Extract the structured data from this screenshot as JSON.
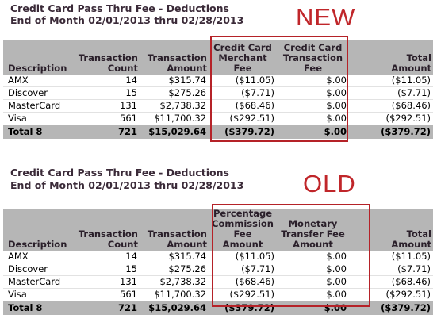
{
  "new_section": {
    "title_line1": "Credit Card Pass Thru Fee - Deductions",
    "title_line2": "End of Month 02/01/2013 thru 02/28/2013",
    "tag": "NEW",
    "headers": {
      "description": "Description",
      "count": [
        "Transaction",
        "Count"
      ],
      "amount": [
        "Transaction",
        "Amount"
      ],
      "fee1": [
        "Credit Card",
        "Merchant",
        "Fee"
      ],
      "fee2": [
        "Credit Card",
        "Transaction",
        "Fee"
      ],
      "total": [
        "Total",
        "Amount"
      ]
    },
    "rows": [
      {
        "description": "AMX",
        "count": "14",
        "amount": "$315.74",
        "fee1": "($11.05)",
        "fee2": "$.00",
        "total": "($11.05)"
      },
      {
        "description": "Discover",
        "count": "15",
        "amount": "$275.26",
        "fee1": "($7.71)",
        "fee2": "$.00",
        "total": "($7.71)"
      },
      {
        "description": "MasterCard",
        "count": "131",
        "amount": "$2,738.32",
        "fee1": "($68.46)",
        "fee2": "$.00",
        "total": "($68.46)"
      },
      {
        "description": "Visa",
        "count": "561",
        "amount": "$11,700.32",
        "fee1": "($292.51)",
        "fee2": "$.00",
        "total": "($292.51)"
      }
    ],
    "total_row": {
      "description": "Total 8",
      "count": "721",
      "amount": "$15,029.64",
      "fee1": "($379.72)",
      "fee2": "$.00",
      "total": "($379.72)"
    }
  },
  "old_section": {
    "title_line1": "Credit Card Pass Thru Fee - Deductions",
    "title_line2": "End of Month 02/01/2013 thru 02/28/2013",
    "tag": "OLD",
    "headers": {
      "description": "Description",
      "count": [
        "Transaction",
        "Count"
      ],
      "amount": [
        "Transaction",
        "Amount"
      ],
      "fee1": [
        "Percentage",
        "Commission Fee",
        "Amount"
      ],
      "fee2": [
        "Monetary",
        "Transfer Fee",
        "Amount"
      ],
      "total": [
        "Total",
        "Amount"
      ]
    },
    "rows": [
      {
        "description": "AMX",
        "count": "14",
        "amount": "$315.74",
        "fee1": "($11.05)",
        "fee2": "$.00",
        "total": "($11.05)"
      },
      {
        "description": "Discover",
        "count": "15",
        "amount": "$275.26",
        "fee1": "($7.71)",
        "fee2": "$.00",
        "total": "($7.71)"
      },
      {
        "description": "MasterCard",
        "count": "131",
        "amount": "$2,738.32",
        "fee1": "($68.46)",
        "fee2": "$.00",
        "total": "($68.46)"
      },
      {
        "description": "Visa",
        "count": "561",
        "amount": "$11,700.32",
        "fee1": "($292.51)",
        "fee2": "$.00",
        "total": "($292.51)"
      }
    ],
    "total_row": {
      "description": "Total 8",
      "count": "721",
      "amount": "$15,029.64",
      "fee1": "($379.72)",
      "fee2": "$.00",
      "total": "($379.72)"
    }
  },
  "colors": {
    "header_bg": "#b6b6b6",
    "highlight": "#b52228",
    "tag": "#c0262a"
  }
}
